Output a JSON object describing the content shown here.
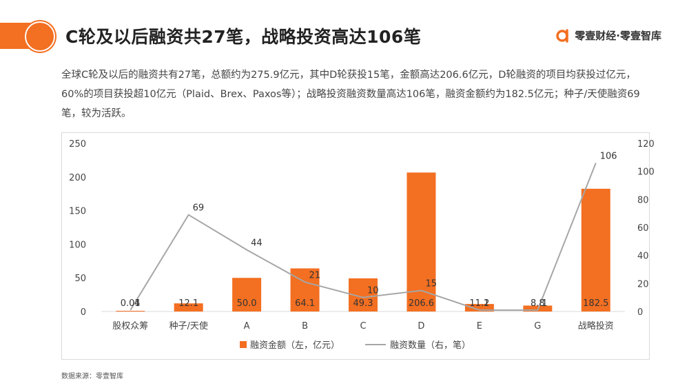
{
  "header": {
    "title": "C轮及以后融资共27笔，战略投资高达106笔",
    "brand": "零壹财经·零壹智库",
    "accent_color": "#F36F21"
  },
  "summary": "全球C轮及以后的融资共有27笔，总额约为275.9亿元，其中D轮获投15笔，金额高达206.6亿元，D轮融资的项目均获投过亿元，60%的项目获投超10亿元（Plaid、Brex、Paxos等）；战略投资融资数量高达106笔，融资金额约为182.5亿元；种子/天使融资69笔，较为活跃。",
  "source": "数据来源：零壹智库",
  "chart_data": {
    "type": "bar+line",
    "categories": [
      "股权众筹",
      "种子/天使",
      "A",
      "B",
      "C",
      "D",
      "E",
      "G",
      "战略投资"
    ],
    "series": [
      {
        "name": "融资金额（左，亿元）",
        "type": "bar",
        "axis": "left",
        "color": "#F36F21",
        "values": [
          0.04,
          12.1,
          50.0,
          64.1,
          49.3,
          206.6,
          11.2,
          8.8,
          182.5
        ],
        "labels": [
          "0.04",
          "12.1",
          "50.0",
          "64.1",
          "49.3",
          "206.6",
          "11.2",
          "8.8",
          "182.5"
        ]
      },
      {
        "name": "融资数量（右，笔）",
        "type": "line",
        "axis": "right",
        "color": "#A6A6A6",
        "values": [
          1,
          69,
          44,
          21,
          10,
          15,
          1,
          1,
          106
        ],
        "labels": [
          "1",
          "69",
          "44",
          "21",
          "10",
          "15",
          "1",
          "1",
          "106"
        ]
      }
    ],
    "y_left": {
      "min": 0,
      "max": 250,
      "ticks": [
        "0",
        "50",
        "100",
        "150",
        "200",
        "250"
      ]
    },
    "y_right": {
      "min": 0,
      "max": 120,
      "ticks": [
        "0",
        "20",
        "40",
        "60",
        "80",
        "100",
        "120"
      ]
    },
    "legend_position": "bottom",
    "grid": false
  }
}
